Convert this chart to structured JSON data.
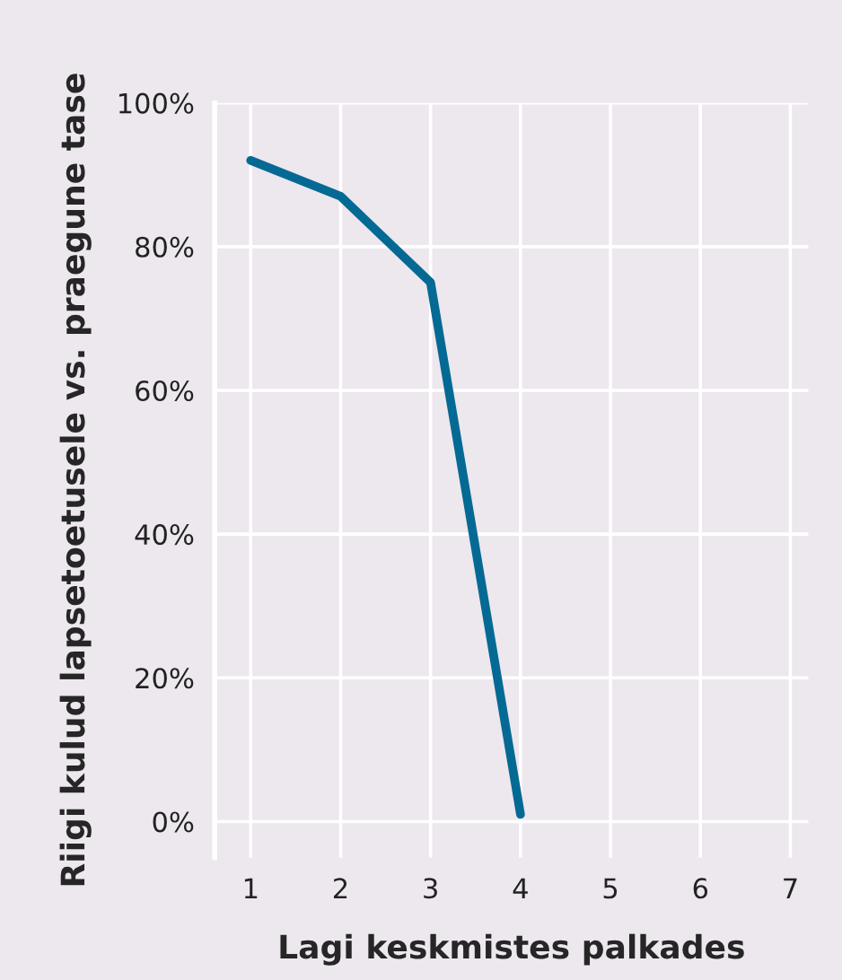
{
  "chart_data": {
    "type": "line",
    "xlabel": "Lagi keskmistes palkades",
    "ylabel": "Riigi kulud lapsetoetusele vs. praegune tase",
    "x": [
      1,
      2,
      3,
      4
    ],
    "series": [
      {
        "color": "#046a94",
        "values": [
          92,
          87,
          75,
          1
        ]
      }
    ],
    "xlim": [
      0.6,
      7.2
    ],
    "xticks": [
      1,
      2,
      3,
      4,
      5,
      6,
      7
    ],
    "ylim": [
      -5,
      100
    ],
    "yticks": [
      {
        "value": 0,
        "label": "0%"
      },
      {
        "value": 20,
        "label": "20%"
      },
      {
        "value": 40,
        "label": "40%"
      },
      {
        "value": 60,
        "label": "60%"
      },
      {
        "value": 80,
        "label": "80%"
      },
      {
        "value": 100,
        "label": "100%"
      }
    ],
    "grid": true,
    "legend": false,
    "marker": "none",
    "line_style": "solid"
  }
}
